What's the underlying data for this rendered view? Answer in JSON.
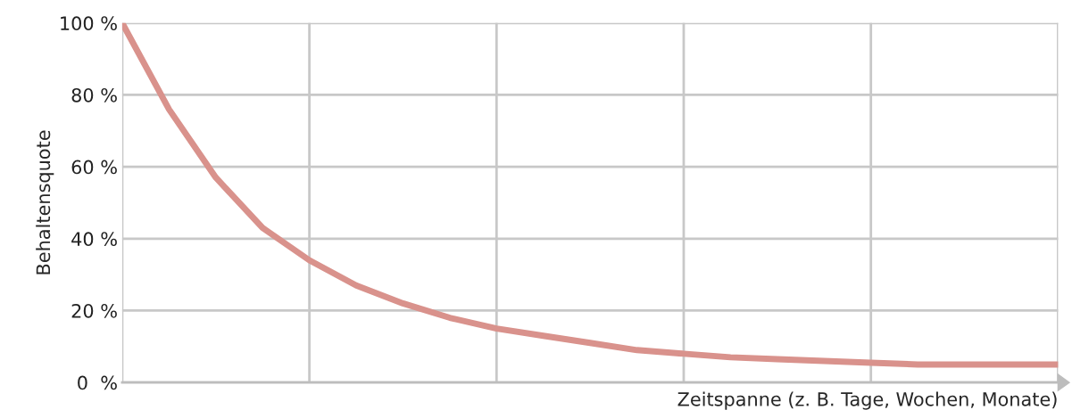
{
  "chart_data": {
    "type": "line",
    "xlabel": "Zeitspanne (z. B. Tage, Wochen, Monate)",
    "ylabel": "Behaltensquote",
    "categories": [
      null,
      null,
      null,
      null,
      null,
      null,
      null,
      null,
      null,
      null,
      null,
      null,
      null,
      null,
      null,
      null,
      null,
      null,
      null,
      null,
      null
    ],
    "series": [
      {
        "color": "#d9928c",
        "values": [
          100,
          76,
          57,
          43,
          34,
          27,
          22,
          18,
          15,
          13,
          11,
          9,
          8,
          7,
          6.5,
          6,
          5.5,
          5,
          5,
          5,
          5
        ]
      }
    ],
    "ylim": [
      0,
      100
    ],
    "yticks": [
      {
        "value": 0,
        "label": "0  %"
      },
      {
        "value": 20,
        "label": "20 %"
      },
      {
        "value": 40,
        "label": "40 %"
      },
      {
        "value": 60,
        "label": "60 %"
      },
      {
        "value": 80,
        "label": "80 %"
      },
      {
        "value": 100,
        "label": "100 %"
      }
    ],
    "grid": true,
    "legend": false,
    "marker": "none",
    "line_style": "solid"
  }
}
